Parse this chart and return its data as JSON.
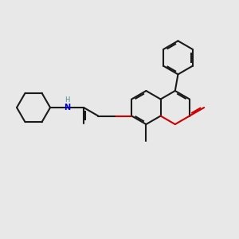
{
  "bg_color": "#e8e8e8",
  "lc": "#1a1a1a",
  "rc": "#cc0000",
  "bc": "#0000cc",
  "lw": 1.5,
  "bl": 0.72
}
